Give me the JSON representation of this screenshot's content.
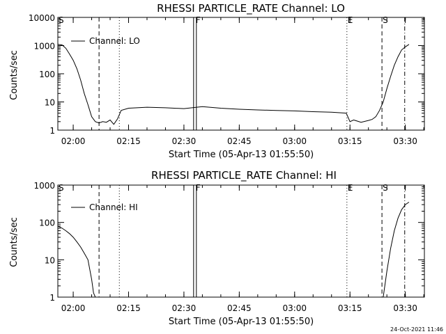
{
  "timestamp": "24-Oct-2021 11:46",
  "chart_data": [
    {
      "type": "line",
      "title": "RHESSI PARTICLE_RATE Channel: LO",
      "xlabel": "Start Time (05-Apr-13 01:55:50)",
      "ylabel": "Counts/sec",
      "y_scale": "log",
      "ylim": [
        1,
        10000
      ],
      "xlim": [
        "01:55:50",
        "03:35:10"
      ],
      "x_ticks": [
        "02:00",
        "02:15",
        "02:30",
        "02:45",
        "03:00",
        "03:15",
        "03:30"
      ],
      "y_ticks": [
        "1",
        "10",
        "100",
        "1000",
        "10000"
      ],
      "legend": {
        "label": "Channel: LO",
        "position": "top-left"
      },
      "series": [
        {
          "name": "Channel: LO",
          "x": [
            "01:55:50",
            "01:57:00",
            "01:58:00",
            "01:59:00",
            "02:00:00",
            "02:01:00",
            "02:02:00",
            "02:03:00",
            "02:04:00",
            "02:05:00",
            "02:06:00",
            "02:07:00",
            "02:08:00",
            "02:09:00",
            "02:10:00",
            "02:11:00",
            "02:12:00",
            "02:13:00",
            "02:15:00",
            "02:20:00",
            "02:25:00",
            "02:30:00",
            "02:35:00",
            "02:40:00",
            "02:45:00",
            "02:50:00",
            "02:55:00",
            "03:00:00",
            "03:05:00",
            "03:10:00",
            "03:14:00",
            "03:15:00",
            "03:16:00",
            "03:18:00",
            "03:20:00",
            "03:21:00",
            "03:22:00",
            "03:23:00",
            "03:24:00",
            "03:25:00",
            "03:26:00",
            "03:27:00",
            "03:28:00",
            "03:29:00",
            "03:30:00",
            "03:31:00"
          ],
          "y": [
            1100,
            1050,
            800,
            500,
            300,
            150,
            60,
            20,
            8,
            3,
            2,
            1.8,
            2,
            1.9,
            2.3,
            1.6,
            2.5,
            5,
            6,
            6.5,
            6.2,
            5.8,
            6.8,
            6,
            5.5,
            5.2,
            5,
            4.8,
            4.5,
            4.3,
            4,
            2,
            2.3,
            1.9,
            2.2,
            2.4,
            3,
            5,
            10,
            30,
            80,
            200,
            400,
            700,
            900,
            1100
          ]
        }
      ],
      "markers": [
        {
          "label": "S",
          "time": "01:55:50",
          "style": "solid"
        },
        {
          "time": "02:07:00",
          "style": "dashed"
        },
        {
          "time": "02:12:30",
          "style": "dotted"
        },
        {
          "label": "F",
          "time": "02:33:00",
          "style": "solid-double"
        },
        {
          "label": "E",
          "time": "03:14:10",
          "style": "dotted"
        },
        {
          "label": "S",
          "time": "03:23:40",
          "style": "dashed"
        },
        {
          "time": "03:29:50",
          "style": "dash-dot"
        }
      ]
    },
    {
      "type": "line",
      "title": "RHESSI PARTICLE_RATE Channel: HI",
      "xlabel": "Start Time (05-Apr-13 01:55:50)",
      "ylabel": "Counts/sec",
      "y_scale": "log",
      "ylim": [
        1,
        1000
      ],
      "xlim": [
        "01:55:50",
        "03:35:10"
      ],
      "x_ticks": [
        "02:00",
        "02:15",
        "02:30",
        "02:45",
        "03:00",
        "03:15",
        "03:30"
      ],
      "y_ticks": [
        "1",
        "10",
        "100",
        "1000"
      ],
      "legend": {
        "label": "Channel: HI",
        "position": "top-left"
      },
      "series": [
        {
          "name": "Channel: HI",
          "x": [
            "01:55:50",
            "01:57:00",
            "01:58:00",
            "01:59:00",
            "02:00:00",
            "02:01:00",
            "02:02:00",
            "02:03:00",
            "02:04:00",
            "02:05:00",
            "02:05:30",
            "02:06:00"
          ],
          "y": [
            80,
            70,
            60,
            50,
            40,
            30,
            22,
            15,
            10,
            3,
            1.3,
            1
          ],
          "segment2": {
            "x": [
              "03:24:00",
              "03:25:00",
              "03:26:00",
              "03:27:00",
              "03:28:00",
              "03:29:00",
              "03:30:00",
              "03:31:00"
            ],
            "y": [
              1,
              5,
              20,
              60,
              130,
              220,
              300,
              350
            ]
          }
        }
      ],
      "markers": [
        {
          "label": "S",
          "time": "01:55:50",
          "style": "solid"
        },
        {
          "time": "02:07:00",
          "style": "dashed"
        },
        {
          "time": "02:12:30",
          "style": "dotted"
        },
        {
          "label": "F",
          "time": "02:33:00",
          "style": "solid-double"
        },
        {
          "label": "E",
          "time": "03:14:10",
          "style": "dotted"
        },
        {
          "label": "S",
          "time": "03:23:40",
          "style": "dashed"
        },
        {
          "time": "03:29:50",
          "style": "dash-dot"
        }
      ]
    }
  ]
}
